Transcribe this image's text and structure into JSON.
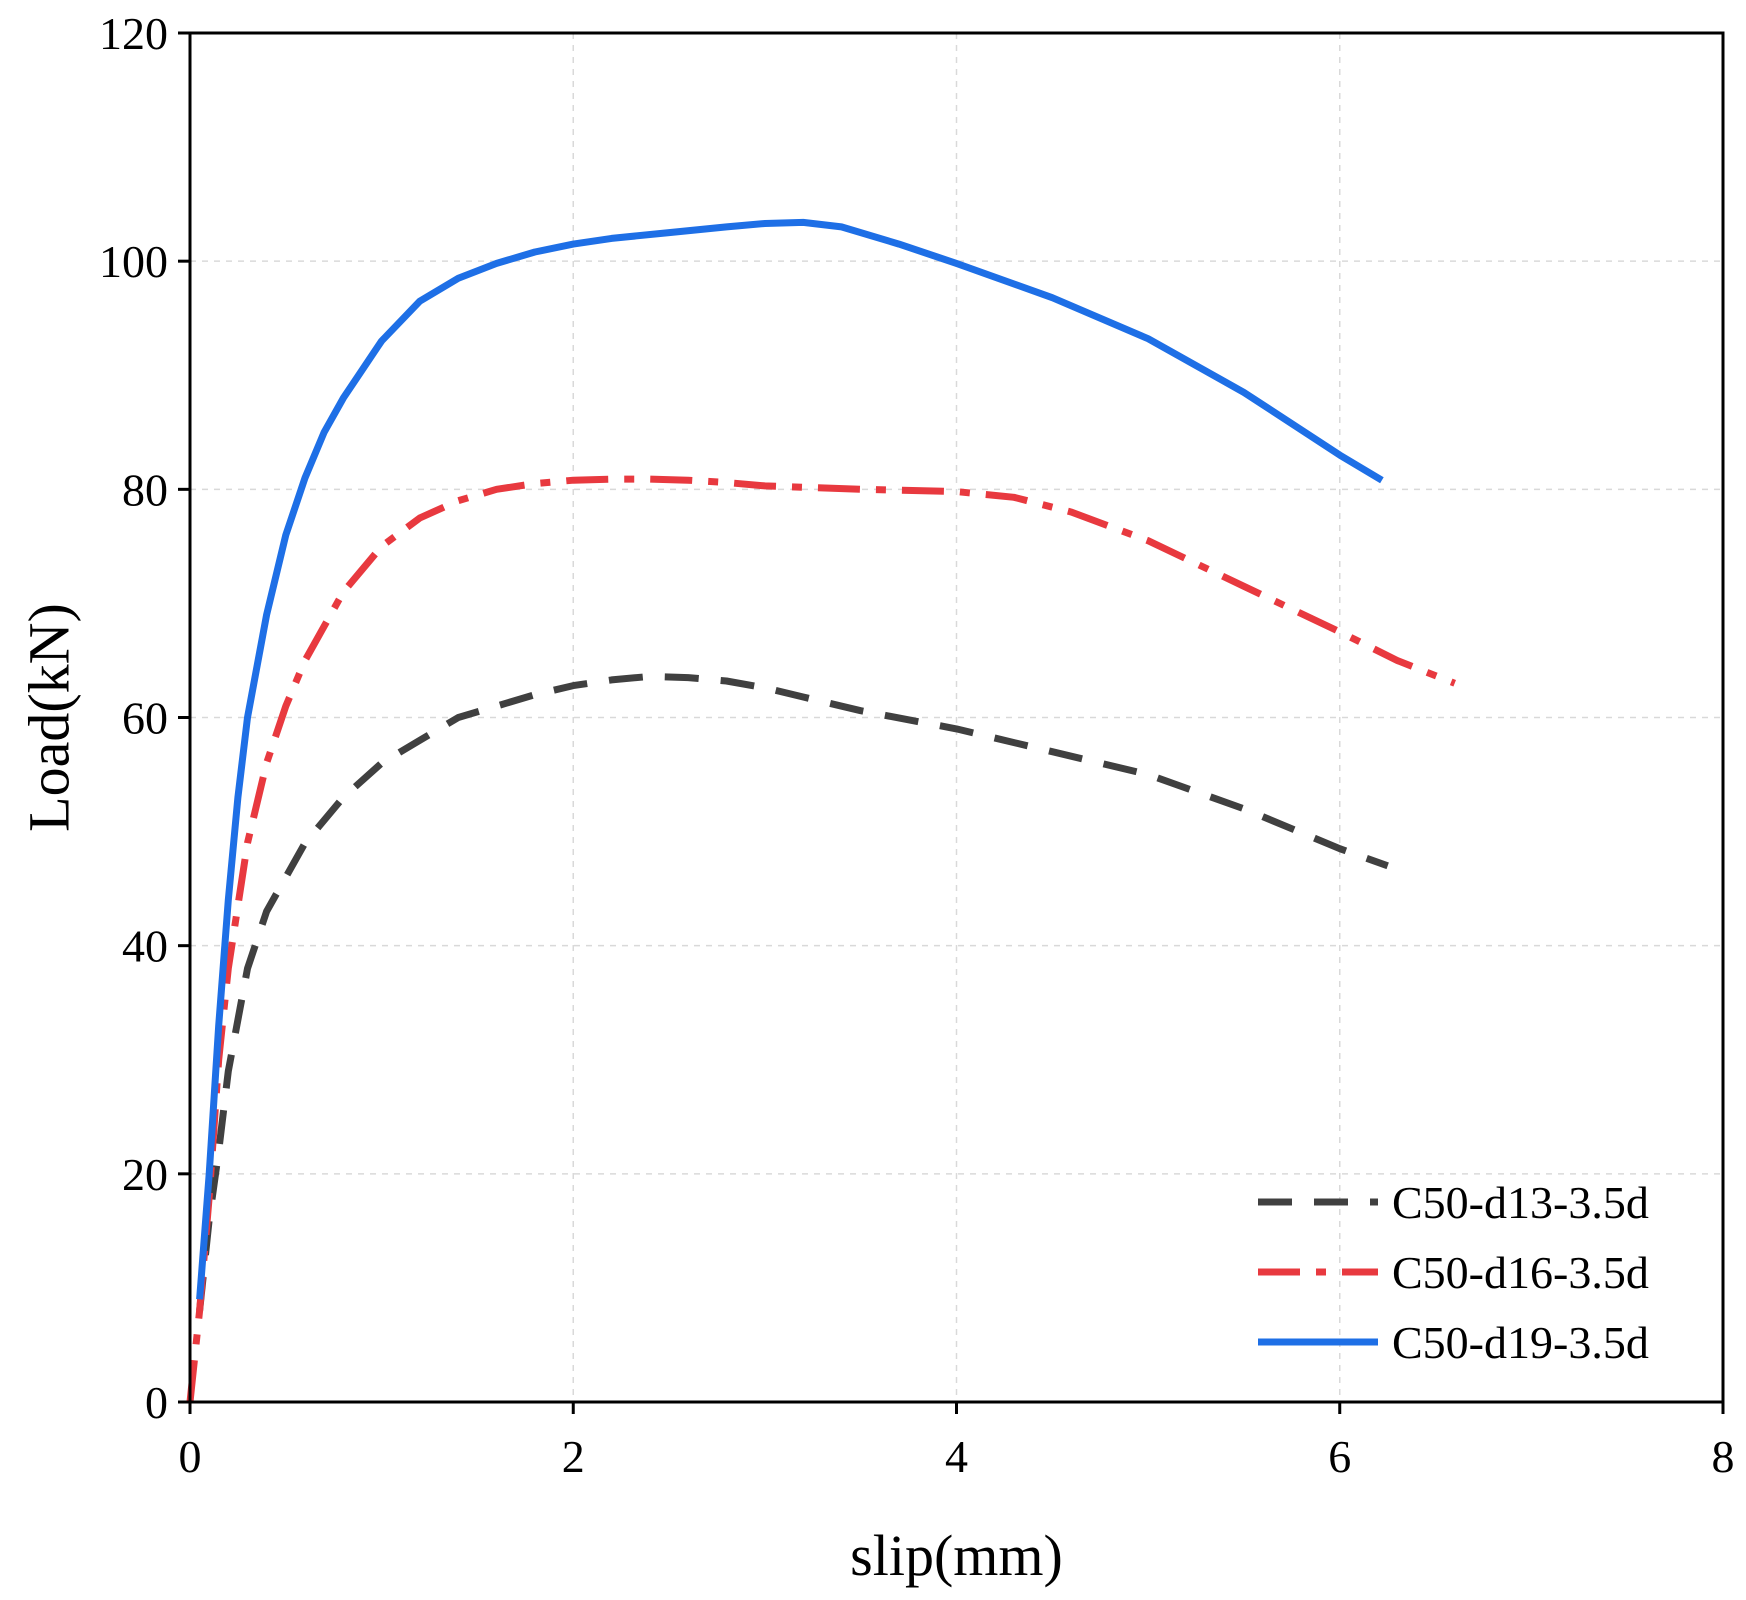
{
  "chart_data": {
    "type": "line",
    "title": "",
    "xlabel": "slip(mm)",
    "ylabel": "Load(kN)",
    "xlim": [
      0,
      8
    ],
    "ylim": [
      0,
      120
    ],
    "xticks": [
      0,
      2,
      4,
      6,
      8
    ],
    "yticks": [
      0,
      20,
      40,
      60,
      80,
      100,
      120
    ],
    "grid": true,
    "legend_position": "bottom-right",
    "series": [
      {
        "name": "C50-d13-3.5d",
        "color": "#404040",
        "style": "dashed",
        "x": [
          0.05,
          0.1,
          0.15,
          0.2,
          0.3,
          0.4,
          0.5,
          0.6,
          0.8,
          1.0,
          1.2,
          1.4,
          1.6,
          1.8,
          2.0,
          2.2,
          2.4,
          2.6,
          2.8,
          3.0,
          3.2,
          3.5,
          4.0,
          4.5,
          5.0,
          5.5,
          6.0,
          6.25
        ],
        "y": [
          8,
          16,
          22,
          29,
          38,
          43,
          46,
          49,
          53,
          56,
          58,
          60,
          61,
          62,
          62.8,
          63.3,
          63.6,
          63.5,
          63.2,
          62.6,
          61.8,
          60.6,
          59,
          57,
          55,
          52,
          48.5,
          47
        ]
      },
      {
        "name": "C50-d16-3.5d",
        "color": "#e8393f",
        "style": "dashdot",
        "x": [
          0,
          0.05,
          0.1,
          0.15,
          0.2,
          0.3,
          0.4,
          0.5,
          0.6,
          0.8,
          1.0,
          1.2,
          1.4,
          1.6,
          1.8,
          2.0,
          2.2,
          2.4,
          2.6,
          2.8,
          3.0,
          3.5,
          4.0,
          4.3,
          4.6,
          5.0,
          5.5,
          6.0,
          6.3,
          6.6
        ],
        "y": [
          0,
          8,
          18,
          30,
          38,
          49,
          56,
          61,
          65,
          71,
          75,
          77.5,
          79,
          80,
          80.5,
          80.8,
          80.9,
          80.9,
          80.8,
          80.6,
          80.3,
          80,
          79.8,
          79.3,
          78,
          75.5,
          71.5,
          67.5,
          65,
          63
        ]
      },
      {
        "name": "C50-d19-3.5d",
        "color": "#1e6fe6",
        "style": "solid",
        "x": [
          0.05,
          0.1,
          0.15,
          0.2,
          0.25,
          0.3,
          0.4,
          0.5,
          0.6,
          0.7,
          0.8,
          1.0,
          1.2,
          1.4,
          1.6,
          1.8,
          2.0,
          2.2,
          2.5,
          2.8,
          3.0,
          3.2,
          3.4,
          3.7,
          4.0,
          4.5,
          5.0,
          5.5,
          6.0,
          6.22
        ],
        "y": [
          9,
          20,
          33,
          44,
          53,
          60,
          69,
          76,
          81,
          85,
          88,
          93,
          96.5,
          98.5,
          99.8,
          100.8,
          101.5,
          102,
          102.5,
          103,
          103.3,
          103.4,
          103,
          101.5,
          99.8,
          96.8,
          93.2,
          88.5,
          83,
          80.8
        ]
      }
    ]
  }
}
